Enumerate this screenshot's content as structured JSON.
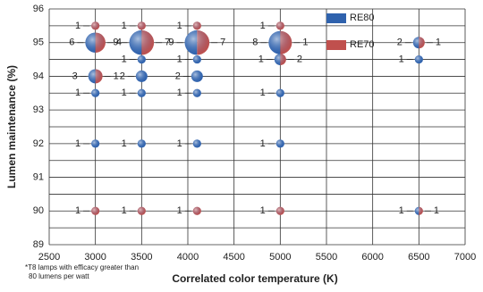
{
  "chart_data": {
    "type": "split-bubble",
    "x_label": "Correlated color temperature (K)",
    "y_label": "Lumen maintenance (%)",
    "footnote": [
      "*T8 lamps with efficacy greater than",
      "80 lumens per watt"
    ],
    "xlim": [
      2500,
      7000
    ],
    "xticks": [
      2500,
      3000,
      3500,
      4000,
      4500,
      5000,
      5500,
      6000,
      6500,
      7000
    ],
    "ylim": [
      89,
      96
    ],
    "yticks": [
      89,
      90,
      91,
      92,
      93,
      94,
      95,
      96
    ],
    "grid": true,
    "legend": "upper right",
    "series": [
      {
        "name": "RE80",
        "color": "#2f62ad",
        "x": [
          3000,
          3500,
          4100,
          5000,
          6500,
          3500,
          4100,
          5000,
          6500,
          3000,
          3500,
          4100,
          3000,
          3500,
          4100,
          5000,
          3000,
          3500,
          4100,
          5000,
          6500
        ],
        "y": [
          95,
          95,
          95,
          95,
          95,
          94.5,
          94.5,
          94.5,
          94.5,
          94,
          94,
          94,
          93.5,
          93.5,
          93.5,
          93.5,
          92,
          92,
          92,
          92,
          90
        ],
        "values": [
          6,
          9,
          9,
          8,
          2,
          1,
          1,
          1,
          1,
          3,
          2,
          2,
          1,
          1,
          1,
          1,
          1,
          1,
          1,
          1,
          1
        ]
      },
      {
        "name": "RE70",
        "color": "#c0504d",
        "x": [
          3000,
          3500,
          4100,
          5000,
          3000,
          3500,
          4100,
          5000,
          6500,
          5000,
          3000,
          3000,
          3500,
          4100,
          5000,
          6500
        ],
        "y": [
          95.5,
          95.5,
          95.5,
          95.5,
          95,
          95,
          95,
          95,
          95,
          94.5,
          94,
          90,
          90,
          90,
          90,
          90
        ],
        "values": [
          1,
          1,
          1,
          1,
          4,
          7,
          7,
          1,
          1,
          2,
          1,
          1,
          1,
          1,
          1,
          1
        ]
      }
    ]
  }
}
